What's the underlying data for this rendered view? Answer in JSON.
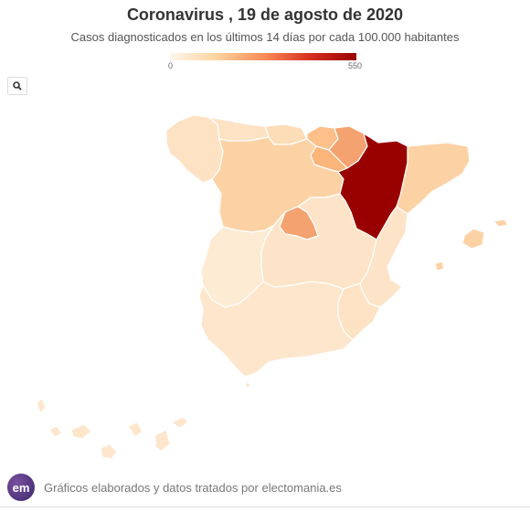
{
  "header": {
    "title": "Coronavirus , 19 de agosto de 2020",
    "subtitle": "Casos diagnosticados en los últimos 14 días por cada 100.000 habitantes"
  },
  "legend": {
    "min_label": "0",
    "max_label": "550",
    "min_value": 0,
    "max_value": 550,
    "colors": [
      "#fff5eb",
      "#fdd49e",
      "#fc8d59",
      "#d7301f",
      "#990000"
    ]
  },
  "toolbar": {
    "search_icon": "search-icon"
  },
  "map": {
    "type": "choropleth",
    "region_colors": {
      "galicia": "#fde2c4",
      "asturias": "#fde2c4",
      "cantabria": "#fddcb8",
      "pais_vasco": "#fdc08a",
      "navarra": "#f4a270",
      "la_rioja": "#fbb47a",
      "aragon": "#990000",
      "cataluna": "#fcd2a5",
      "castilla_leon": "#fcd2a5",
      "madrid": "#f4a270",
      "castilla_la_mancha": "#fde4c8",
      "extremadura": "#fdebd4",
      "comunidad_valenciana": "#fde4c8",
      "murcia": "#fde2c4",
      "andalucia": "#fde6cc",
      "baleares": "#fcd2a5",
      "canarias": "#fde6cc",
      "ceuta_melilla": "#fde6cc"
    }
  },
  "footer": {
    "logo_text": "em",
    "credit": "Gráficos elaborados y datos tratados por electomania.es"
  }
}
